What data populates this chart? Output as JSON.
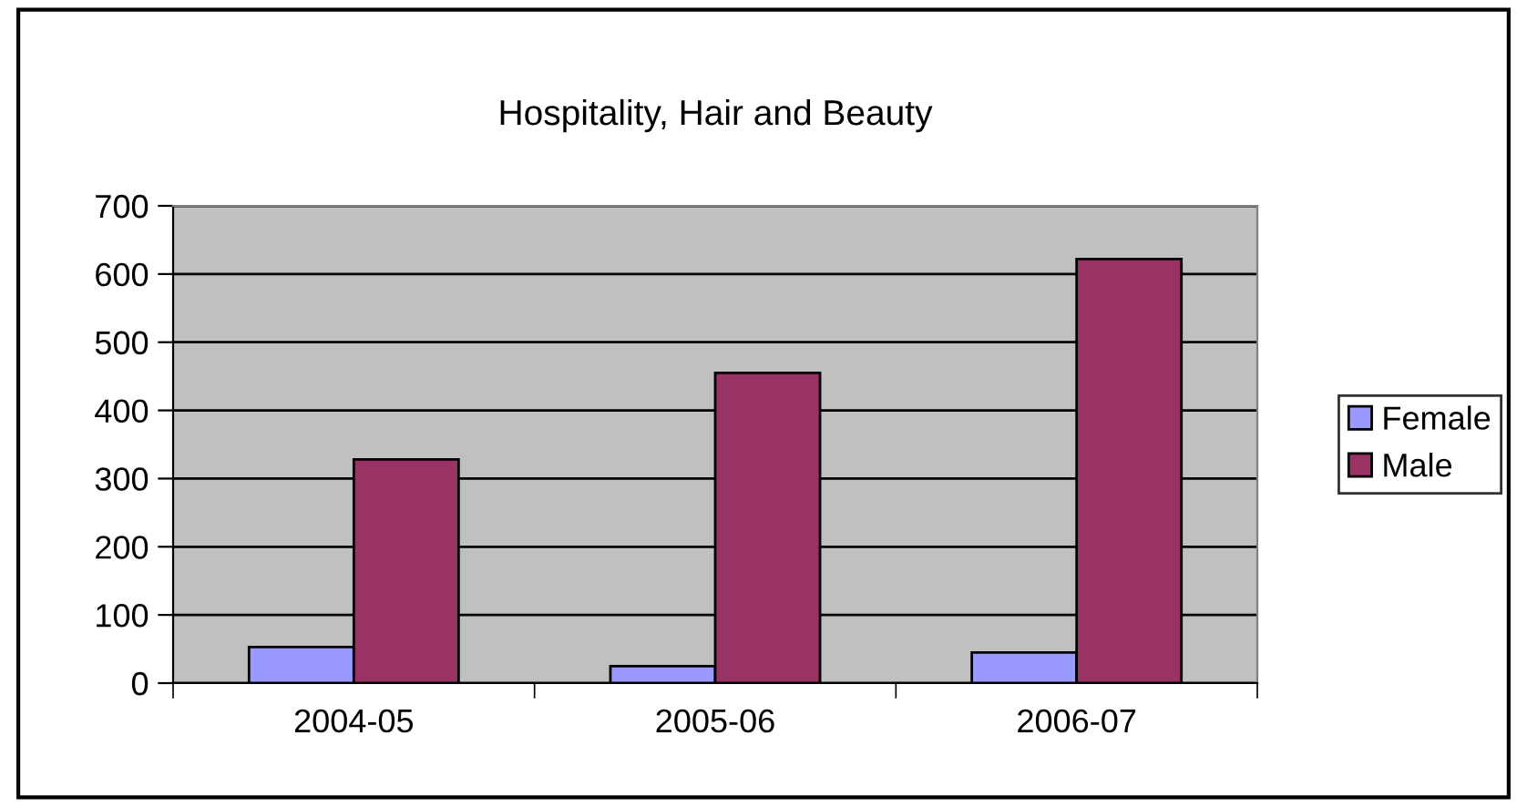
{
  "chart_data": {
    "type": "bar",
    "title": "Hospitality, Hair and Beauty",
    "categories": [
      "2004-05",
      "2005-06",
      "2006-07"
    ],
    "series": [
      {
        "name": "Female",
        "color": "#9999ff",
        "values": [
          53,
          25,
          45
        ]
      },
      {
        "name": "Male",
        "color": "#993366",
        "values": [
          328,
          455,
          622
        ]
      }
    ],
    "ylim": [
      0,
      700
    ],
    "yticks": [
      0,
      100,
      200,
      300,
      400,
      500,
      600,
      700
    ],
    "grid": "y",
    "legend": "right"
  }
}
